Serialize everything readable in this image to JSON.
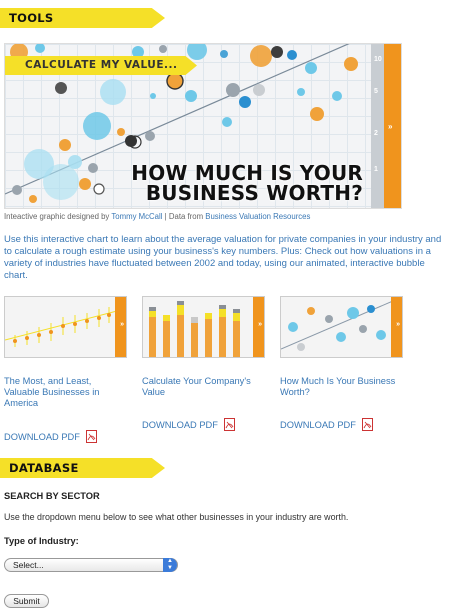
{
  "tools": {
    "heading": "TOOLS"
  },
  "hero": {
    "calc_label": "CALCULATE MY VALUE...",
    "title_line1": "HOW MUCH IS YOUR",
    "title_line2": "BUSINESS WORTH?",
    "scale_ticks": [
      "10",
      "5",
      "2",
      "1"
    ],
    "colors": {
      "accent_yellow": "#f5e028",
      "accent_orange": "#f0941d",
      "bubble_blue": "#6ec8e8"
    }
  },
  "credit": {
    "prefix": "Inteactive graphic designed by",
    "designer": "Tommy McCall",
    "separator": "| Data from",
    "source": "Business Valuation Resources"
  },
  "intro_text": "Use this interactive chart to learn about the average valuation for private companies in your industry and to calculate a rough estimate using your business's key numbers. Plus: Check out how valuations in a variety of industries have fluctuated between 2002 and today, using our animated, interactive bubble chart.",
  "tools_items": [
    {
      "caption": "The Most, and Least, Valuable Businesses in America",
      "download": "DOWNLOAD PDF"
    },
    {
      "caption": "Calculate Your Company's Value",
      "download": "DOWNLOAD PDF"
    },
    {
      "caption": "How Much Is Your Business Worth?",
      "download": "DOWNLOAD PDF"
    }
  ],
  "database": {
    "heading": "DATABASE",
    "search_heading": "SEARCH BY SECTOR",
    "search_desc": "Use the dropdown menu below to see what other businesses in your industry are worth.",
    "industry_label": "Type of Industry:",
    "select_value": "Select...",
    "submit_label": "Submit"
  }
}
